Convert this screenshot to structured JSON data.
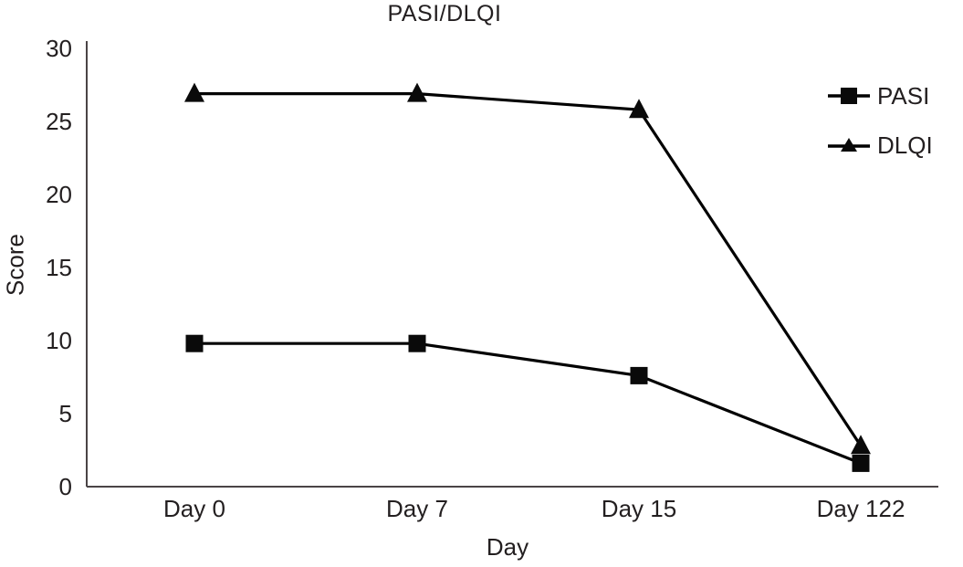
{
  "chart_data": {
    "type": "line",
    "title": "PASI/DLQI",
    "xlabel": "Day",
    "ylabel": "Score",
    "categories": [
      "Day 0",
      "Day 7",
      "Day 15",
      "Day 122"
    ],
    "series": [
      {
        "name": "PASI",
        "marker": "square",
        "values": [
          9.8,
          9.8,
          7.6,
          1.6
        ]
      },
      {
        "name": "DLQI",
        "marker": "triangle",
        "values": [
          26.9,
          26.9,
          25.8,
          2.8
        ]
      }
    ],
    "ylim": [
      0,
      30
    ],
    "yticks": [
      0,
      5,
      10,
      15,
      20,
      25,
      30
    ],
    "grid": false,
    "legend_position": "right",
    "colors": {
      "line": "#000000",
      "marker": "#0a0a0a",
      "axis": "#4a4446",
      "text": "#231f20"
    }
  }
}
